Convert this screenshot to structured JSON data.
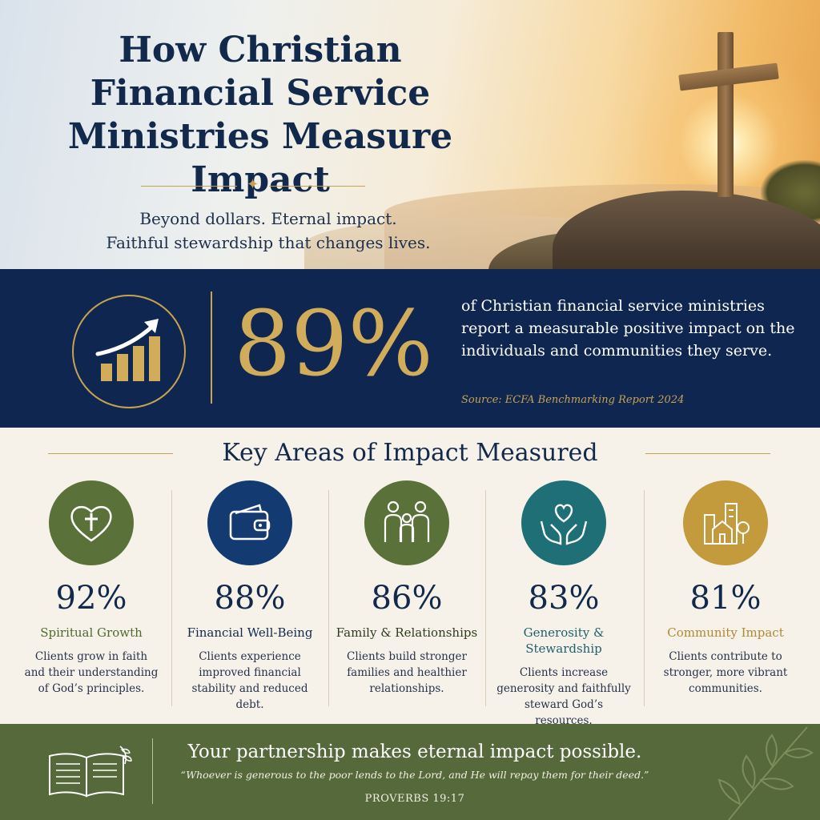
{
  "hero": {
    "title_line1": "How Christian",
    "title_line2": "Financial Service",
    "title_line3": "Ministries Measure Impact",
    "subtitle_line1": "Beyond dollars. Eternal impact.",
    "subtitle_line2": "Faithful stewardship that changes lives."
  },
  "stat": {
    "value": "89%",
    "text": "of Christian financial service ministries report a measurable positive impact on the individuals and communities they serve.",
    "source": "Source: ECFA Benchmarking Report 2024",
    "icon": "growth-chart-icon"
  },
  "areas": {
    "title": "Key Areas of Impact Measured",
    "items": [
      {
        "icon": "heart-cross-icon",
        "color": "#5a7139",
        "label_color": "#4e6a2c",
        "value": "92%",
        "label": "Spiritual Growth",
        "description": "Clients grow in faith and their understanding of God’s principles."
      },
      {
        "icon": "wallet-icon",
        "color": "#143a72",
        "label_color": "#13294b",
        "value": "88%",
        "label": "Financial Well-Being",
        "description": "Clients experience improved financial stability and reduced debt."
      },
      {
        "icon": "family-icon",
        "color": "#5a7139",
        "label_color": "#2f3b1e",
        "value": "86%",
        "label": "Family & Relationships",
        "description": "Clients build stronger families and healthier relationships."
      },
      {
        "icon": "hands-heart-icon",
        "color": "#1f6f77",
        "label_color": "#1f5f6e",
        "value": "83%",
        "label": "Generosity & Stewardship",
        "description": "Clients increase generosity and faithfully steward God’s resources."
      },
      {
        "icon": "community-icon",
        "color": "#c39a3c",
        "label_color": "#b08a32",
        "value": "81%",
        "label": "Community Impact",
        "description": "Clients contribute to stronger, more vibrant communities."
      }
    ]
  },
  "footer": {
    "headline": "Your partnership makes eternal impact possible.",
    "quote": "“Whoever is generous to the poor lends to the Lord, and He will repay them for their deed.”",
    "reference": "PROVERBS 19:17",
    "icon": "open-bible-icon",
    "decoration": "leaf-branch-icon"
  }
}
